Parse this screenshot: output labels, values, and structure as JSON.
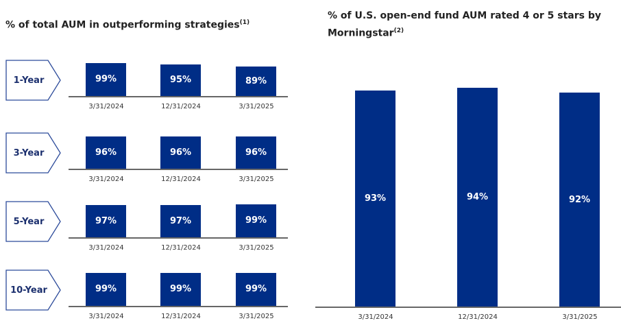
{
  "chart_data": [
    {
      "type": "bar",
      "title": "% of total AUM in outperforming strategies",
      "title_footnote": "(1)",
      "categories": [
        "3/31/2024",
        "12/31/2024",
        "3/31/2025"
      ],
      "series": [
        {
          "name": "1-Year",
          "values": [
            99,
            95,
            89
          ],
          "labels": [
            "99%",
            "95%",
            "89%"
          ]
        },
        {
          "name": "3-Year",
          "values": [
            96,
            96,
            96
          ],
          "labels": [
            "96%",
            "96%",
            "96%"
          ]
        },
        {
          "name": "5-Year",
          "values": [
            97,
            97,
            99
          ],
          "labels": [
            "97%",
            "97%",
            "99%"
          ]
        },
        {
          "name": "10-Year",
          "values": [
            99,
            99,
            99
          ],
          "labels": [
            "99%",
            "99%",
            "99%"
          ]
        }
      ],
      "unit": "%"
    },
    {
      "type": "bar",
      "title": "% of U.S. open-end fund AUM rated 4 or 5 stars by Morningstar",
      "title_footnote": "(2)",
      "categories": [
        "3/31/2024",
        "12/31/2024",
        "3/31/2025"
      ],
      "values": [
        93,
        94,
        92
      ],
      "labels": [
        "93%",
        "94%",
        "92%"
      ],
      "unit": "%"
    }
  ],
  "colors": {
    "bar": "#002d86",
    "tag_border": "#2b4a9a"
  }
}
